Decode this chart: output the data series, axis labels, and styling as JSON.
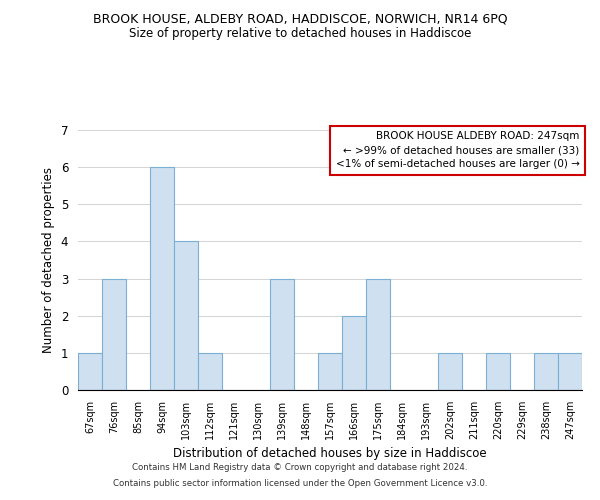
{
  "title": "BROOK HOUSE, ALDEBY ROAD, HADDISCOE, NORWICH, NR14 6PQ",
  "subtitle": "Size of property relative to detached houses in Haddiscoe",
  "xlabel": "Distribution of detached houses by size in Haddiscoe",
  "ylabel": "Number of detached properties",
  "bar_labels": [
    "67sqm",
    "76sqm",
    "85sqm",
    "94sqm",
    "103sqm",
    "112sqm",
    "121sqm",
    "130sqm",
    "139sqm",
    "148sqm",
    "157sqm",
    "166sqm",
    "175sqm",
    "184sqm",
    "193sqm",
    "202sqm",
    "211sqm",
    "220sqm",
    "229sqm",
    "238sqm",
    "247sqm"
  ],
  "bar_values": [
    1,
    3,
    0,
    6,
    4,
    1,
    0,
    0,
    3,
    0,
    1,
    2,
    3,
    0,
    0,
    1,
    0,
    1,
    0,
    1,
    1
  ],
  "bar_facecolor": "#cfe0f0",
  "bar_edgecolor": "#7bafd4",
  "ylim": [
    0,
    7
  ],
  "yticks": [
    0,
    1,
    2,
    3,
    4,
    5,
    6,
    7
  ],
  "legend_title": "BROOK HOUSE ALDEBY ROAD: 247sqm",
  "legend_line1": "← >99% of detached houses are smaller (33)",
  "legend_line2": "<1% of semi-detached houses are larger (0) →",
  "legend_box_color": "#ffffff",
  "legend_border_color": "#cc0000",
  "footnote1": "Contains HM Land Registry data © Crown copyright and database right 2024.",
  "footnote2": "Contains public sector information licensed under the Open Government Licence v3.0."
}
